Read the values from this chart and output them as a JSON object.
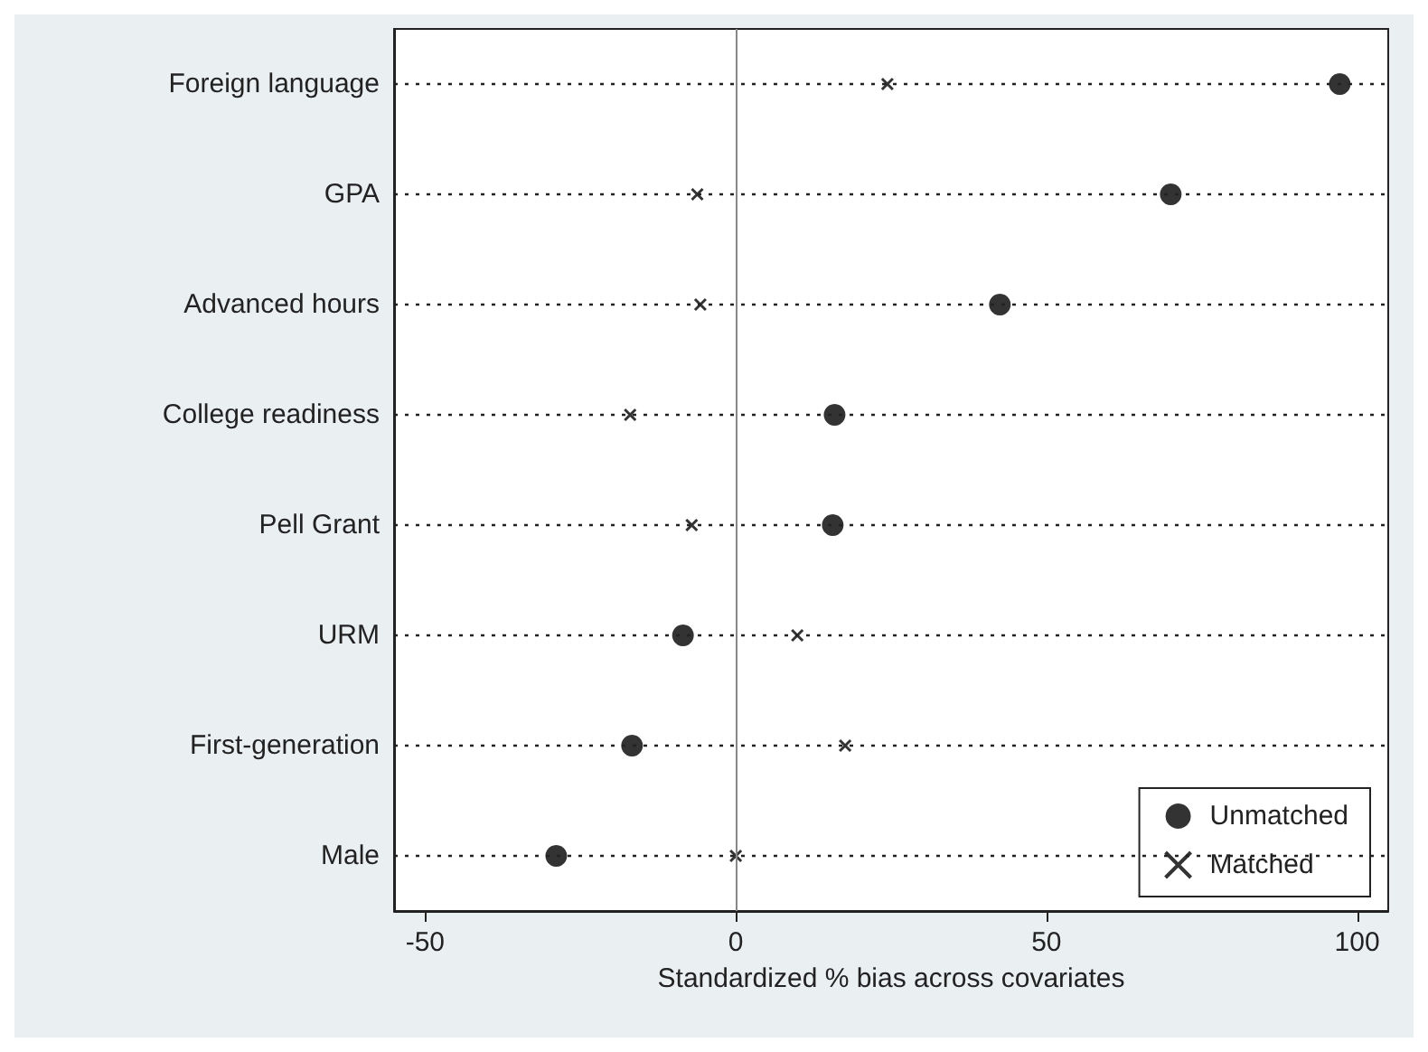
{
  "chart_data": {
    "type": "scatter",
    "orientation": "horizontal",
    "xlabel": "Standardized % bias across covariates",
    "categories": [
      "Foreign language",
      "GPA",
      "Advanced hours",
      "College readiness",
      "Pell Grant",
      "URM",
      "First-generation",
      "Male"
    ],
    "series": [
      {
        "name": "Unmatched",
        "color": "#000000",
        "marker": "circle",
        "values": [
          97.2,
          70,
          42.5,
          15.9,
          15.6,
          -8.5,
          -16.7,
          -28.9
        ]
      },
      {
        "name": "Matched",
        "color": "#000000",
        "marker": "cross",
        "values": [
          24.4,
          -6.2,
          -5.7,
          -17,
          -7.1,
          9.9,
          17.6,
          0
        ]
      }
    ],
    "xlim": [
      -55,
      105
    ],
    "xticks": [
      -50,
      0,
      50,
      100
    ],
    "ref_lines": [
      {
        "axis": "x",
        "value": 0,
        "color": "#888888"
      }
    ],
    "grid": "y",
    "legend": "bottom right"
  }
}
